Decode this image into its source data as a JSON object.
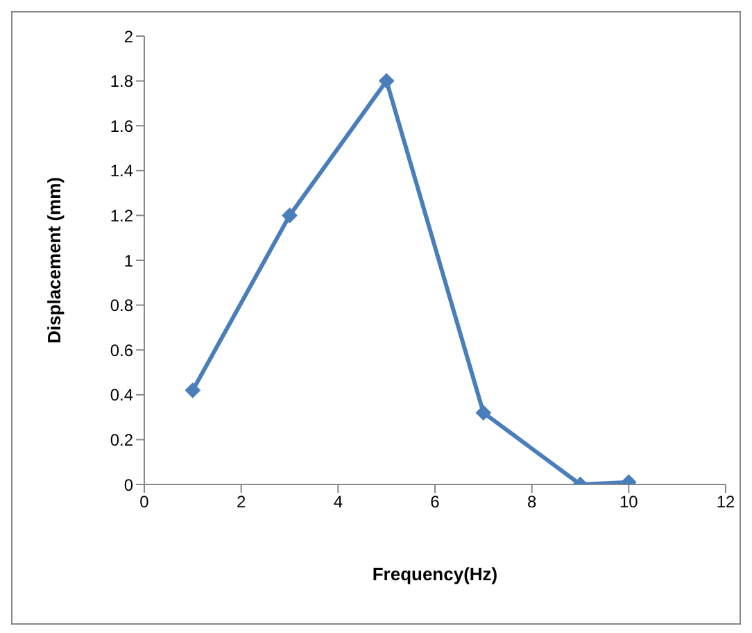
{
  "chart_data": {
    "type": "line",
    "xlabel": "Frequency(Hz)",
    "ylabel": "Displacement (mm)",
    "x": [
      1,
      3,
      5,
      7,
      9,
      10
    ],
    "series": [
      {
        "color": "#4a7ebb",
        "values": [
          0.42,
          1.2,
          1.8,
          0.32,
          0,
          0.01
        ]
      }
    ],
    "xlim": [
      0,
      12
    ],
    "xticks": [
      0,
      2,
      4,
      6,
      8,
      10,
      12
    ],
    "ylim": [
      0,
      2
    ],
    "yticks": [
      0,
      0.2,
      0.4,
      0.6,
      0.8,
      1,
      1.2,
      1.4,
      1.6,
      1.8,
      2
    ],
    "marker": "diamond",
    "line_style": "solid"
  }
}
